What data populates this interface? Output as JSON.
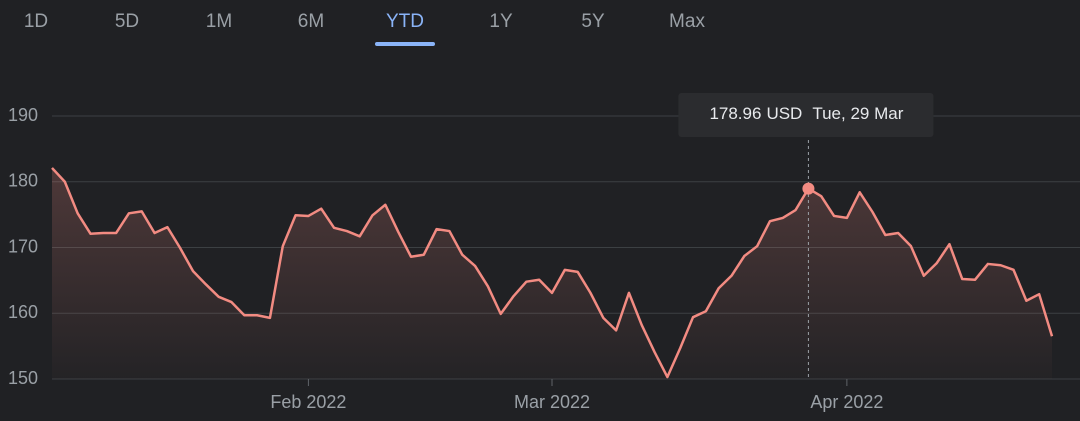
{
  "ranges": [
    "1D",
    "5D",
    "1M",
    "6M",
    "YTD",
    "1Y",
    "5Y",
    "Max"
  ],
  "selected_range": "YTD",
  "chart_data": {
    "type": "line",
    "categories": [
      null,
      null,
      null,
      null,
      null,
      null,
      null,
      null,
      null,
      null,
      null,
      null,
      null,
      null,
      null,
      null,
      null,
      null,
      null,
      null,
      "Feb 2022",
      null,
      null,
      null,
      null,
      null,
      null,
      null,
      null,
      null,
      null,
      null,
      null,
      null,
      null,
      null,
      null,
      null,
      null,
      "Mar 2022",
      null,
      null,
      null,
      null,
      null,
      null,
      null,
      null,
      null,
      null,
      null,
      null,
      null,
      null,
      null,
      null,
      null,
      null,
      null,
      null,
      null,
      null,
      "Apr 2022",
      null,
      null,
      null,
      null,
      null,
      null,
      null,
      null,
      null,
      null,
      null,
      null,
      null,
      null,
      null,
      null
    ],
    "values": [
      182.1,
      180,
      175.2,
      172.1,
      172.2,
      172.2,
      175.2,
      175.5,
      172.2,
      173.1,
      169.9,
      166.4,
      164.4,
      162.5,
      161.7,
      159.7,
      159.7,
      159.3,
      170.2,
      174.9,
      174.8,
      175.9,
      173,
      172.5,
      171.7,
      174.9,
      176.5,
      172.4,
      168.6,
      168.9,
      172.8,
      172.5,
      168.9,
      167.2,
      164.1,
      159.9,
      162.6,
      164.8,
      165.1,
      163.1,
      166.6,
      166.3,
      163.1,
      159.3,
      157.4,
      163.1,
      158.2,
      154.1,
      150.3,
      154.7,
      159.4,
      160.3,
      163.8,
      165.7,
      168.7,
      170.2,
      174,
      174.5,
      175.7,
      178.96,
      177.8,
      174.8,
      174.5,
      178.4,
      175.4,
      171.9,
      172.2,
      170.2,
      165.7,
      167.6,
      170.5,
      165.2,
      165.1,
      167.5,
      167.3,
      166.6,
      161.9,
      162.9,
      156.5
    ],
    "color": "#f28b82",
    "ylim": [
      150,
      190
    ],
    "yticks": [
      150,
      160,
      170,
      180,
      190
    ],
    "grid": true,
    "tooltip": {
      "value": 178.96,
      "unit": "USD",
      "date": "Tue, 29 Mar"
    }
  }
}
